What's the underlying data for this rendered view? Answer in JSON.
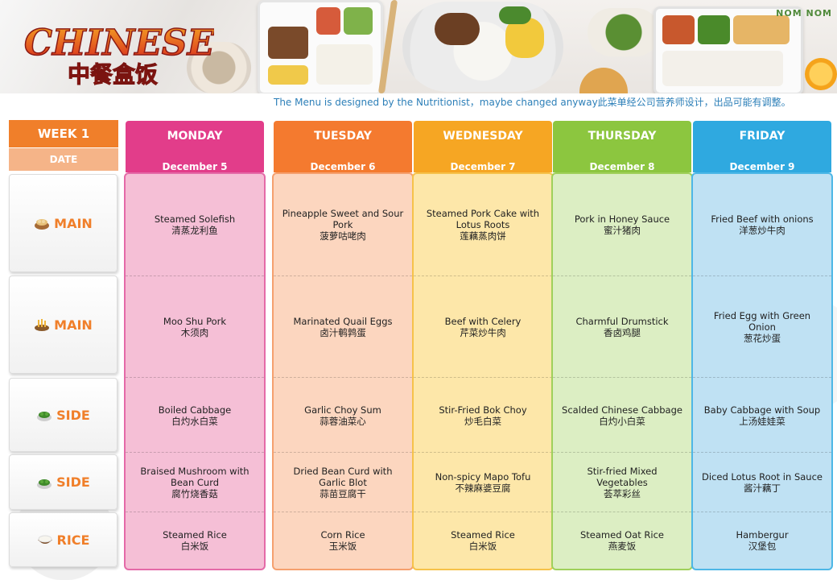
{
  "brand": "NOM NOM",
  "logo": {
    "title": "CHINESE",
    "subtitle": "中餐盒饭"
  },
  "designed_note": "The Menu is designed by the Nutritionist，maybe changed anyway此菜单经公司营养师设计，出品可能有调整。",
  "week_label": "WEEK 1",
  "date_label": "DATE",
  "rows": [
    {
      "label": "MAIN",
      "icon": "dumpling-bowl-icon"
    },
    {
      "label": "MAIN",
      "icon": "fries-bowl-icon"
    },
    {
      "label": "SIDE",
      "icon": "greens-bowl-icon"
    },
    {
      "label": "SIDE",
      "icon": "greens-bowl-icon"
    },
    {
      "label": "RICE",
      "icon": "rice-bowl-icon"
    }
  ],
  "days": [
    {
      "name": "MONDAY",
      "date": "December 5",
      "head_color": "#e23d8a",
      "body_color": "#f5bfd6",
      "border_color": "#e46aa8",
      "items": [
        {
          "en": "Steamed Solefish",
          "zh": "清蒸龙利鱼"
        },
        {
          "en": "Moo Shu Pork",
          "zh": "木须肉"
        },
        {
          "en": "Boiled Cabbage",
          "zh": "白灼水白菜"
        },
        {
          "en": "Braised Mushroom with Bean Curd",
          "zh": "腐竹烧香菇"
        },
        {
          "en": "Steamed Rice",
          "zh": "白米饭"
        }
      ]
    },
    {
      "name": "TUESDAY",
      "date": "December 6",
      "head_color": "#f47a2f",
      "body_color": "#fcd6bf",
      "border_color": "#f5a06e",
      "items": [
        {
          "en": "Pineapple Sweet and Sour Pork",
          "zh": "菠萝咕咾肉"
        },
        {
          "en": "Marinated Quail Eggs",
          "zh": "卤汁鹌鹑蛋"
        },
        {
          "en": "Garlic Choy Sum",
          "zh": "蒜蓉油菜心"
        },
        {
          "en": "Dried Bean Curd with Garlic Blot",
          "zh": "蒜苗豆腐干"
        },
        {
          "en": "Corn Rice",
          "zh": "玉米饭"
        }
      ]
    },
    {
      "name": "WEDNESDAY",
      "date": "December 7",
      "head_color": "#f6a623",
      "body_color": "#fde7a9",
      "border_color": "#f6c24a",
      "items": [
        {
          "en": "Steamed Pork Cake with Lotus Roots",
          "zh": "莲藕蒸肉饼"
        },
        {
          "en": "Beef with Celery",
          "zh": "芹菜炒牛肉"
        },
        {
          "en": "Stir-Fried Bok Choy",
          "zh": "炒毛白菜"
        },
        {
          "en": "Non-spicy Mapo Tofu",
          "zh": "不辣麻婆豆腐"
        },
        {
          "en": "Steamed Rice",
          "zh": "白米饭"
        }
      ]
    },
    {
      "name": "THURSDAY",
      "date": "December 8",
      "head_color": "#8cc63f",
      "body_color": "#dceec3",
      "border_color": "#9fd05a",
      "items": [
        {
          "en": "Pork in Honey Sauce",
          "zh": "蜜汁猪肉"
        },
        {
          "en": "Charmful Drumstick",
          "zh": "香卤鸡腿"
        },
        {
          "en": "Scalded Chinese Cabbage",
          "zh": "白灼小白菜"
        },
        {
          "en": "Stir-fried Mixed Vegetables",
          "zh": "荟萃彩丝"
        },
        {
          "en": "Steamed Oat Rice",
          "zh": "燕麦饭"
        }
      ]
    },
    {
      "name": "FRIDAY",
      "date": "December 9",
      "head_color": "#2fa9e0",
      "body_color": "#bfe1f3",
      "border_color": "#4db7e6",
      "items": [
        {
          "en": "Fried Beef with onions",
          "zh": "洋葱炒牛肉"
        },
        {
          "en": "Fried Egg with Green Onion",
          "zh": "葱花炒蛋"
        },
        {
          "en": "Baby Cabbage with Soup",
          "zh": "上汤娃娃菜"
        },
        {
          "en": "Diced Lotus Root in Sauce",
          "zh": "酱汁藕丁"
        },
        {
          "en": "Hambergur",
          "zh": "汉堡包"
        }
      ]
    }
  ]
}
